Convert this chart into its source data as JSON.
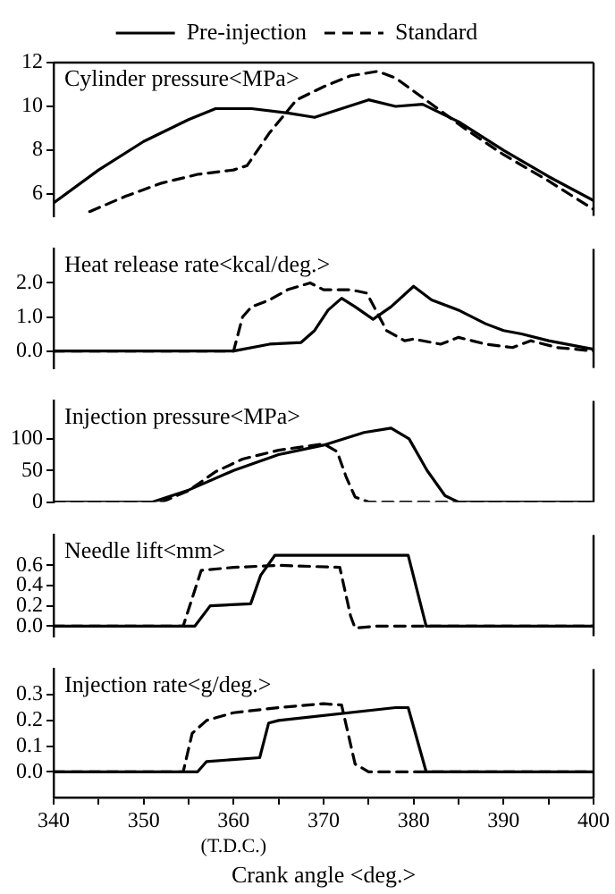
{
  "chart_data": [
    {
      "type": "line",
      "title": "Cylinder pressure<MPa>",
      "legend": "top",
      "marker": "none",
      "tick_labels": "y",
      "xlim": [
        340,
        400
      ],
      "ylim": [
        5,
        12
      ],
      "yticks": [
        6,
        8,
        10,
        12
      ],
      "series": [
        {
          "name": "Pre-injection",
          "color": "#000000",
          "line_style": "solid",
          "x": [
            340,
            345,
            350,
            355,
            358,
            362,
            366,
            369,
            372,
            375,
            378,
            381,
            385,
            390,
            395,
            400
          ],
          "values": [
            5.6,
            7.1,
            8.4,
            9.4,
            9.9,
            9.9,
            9.7,
            9.5,
            9.9,
            10.3,
            10.0,
            10.1,
            9.3,
            8.0,
            6.8,
            5.7
          ]
        },
        {
          "name": "Standard",
          "color": "#000000",
          "line_style": "dashed",
          "x": [
            344,
            348,
            352,
            356,
            360,
            361.5,
            364,
            367,
            370,
            373,
            376,
            378,
            382,
            386,
            390,
            395,
            400
          ],
          "values": [
            5.2,
            5.9,
            6.5,
            6.9,
            7.1,
            7.3,
            8.8,
            10.3,
            10.9,
            11.4,
            11.6,
            11.3,
            10.1,
            8.9,
            7.8,
            6.6,
            5.3
          ]
        }
      ]
    },
    {
      "type": "line",
      "title": "Heat release rate<kcal/deg.>",
      "legend": false,
      "marker": "none",
      "tick_labels": "y",
      "xlim": [
        340,
        400
      ],
      "ylim": [
        -0.5,
        3.0
      ],
      "yticks": [
        {
          "value": 0,
          "label": "0.0"
        },
        {
          "value": 1,
          "label": "1.0"
        },
        {
          "value": 2,
          "label": "2.0"
        }
      ],
      "series": [
        {
          "color": "#000000",
          "line_style": "solid",
          "x": [
            340,
            360,
            364,
            367.5,
            369,
            370.5,
            372,
            373.5,
            375.5,
            377.5,
            380,
            382,
            385,
            388,
            390,
            392,
            395,
            398,
            400
          ],
          "values": [
            0,
            0,
            0.2,
            0.25,
            0.6,
            1.2,
            1.55,
            1.3,
            0.93,
            1.3,
            1.9,
            1.5,
            1.2,
            0.8,
            0.6,
            0.5,
            0.3,
            0.15,
            0.05
          ]
        },
        {
          "color": "#000000",
          "line_style": "dashed",
          "x": [
            340,
            360,
            361,
            362,
            364,
            366,
            368.5,
            370,
            373,
            374.8,
            377,
            379,
            380,
            383,
            385,
            388,
            391,
            393,
            396,
            400
          ],
          "values": [
            0,
            0,
            1.0,
            1.3,
            1.5,
            1.8,
            2.0,
            1.8,
            1.8,
            1.7,
            0.6,
            0.3,
            0.35,
            0.2,
            0.4,
            0.2,
            0.1,
            0.3,
            0.1,
            0
          ]
        }
      ]
    },
    {
      "type": "line",
      "title": "Injection pressure<MPa>",
      "legend": false,
      "marker": "none",
      "tick_labels": "y",
      "xlim": [
        340,
        400
      ],
      "ylim": [
        0,
        160
      ],
      "yticks": [
        0,
        50,
        100
      ],
      "series": [
        {
          "color": "#000000",
          "line_style": "solid",
          "x": [
            340,
            351,
            355,
            360,
            365,
            370,
            374.5,
            377.5,
            379.5,
            381.5,
            383.5,
            385,
            400
          ],
          "values": [
            0,
            0,
            19,
            50,
            75,
            90,
            110,
            117,
            100,
            50,
            10,
            0,
            0
          ]
        },
        {
          "color": "#000000",
          "line_style": "dashed",
          "x": [
            340,
            352,
            355,
            358,
            361,
            365,
            370,
            371.5,
            372.5,
            373.5,
            375,
            400
          ],
          "values": [
            0,
            0,
            18,
            48,
            68,
            82,
            92,
            80,
            40,
            8,
            0,
            0
          ]
        }
      ]
    },
    {
      "type": "line",
      "title": "Needle lift<mm>",
      "legend": false,
      "marker": "none",
      "tick_labels": "y",
      "xlim": [
        340,
        400
      ],
      "ylim": [
        -0.1,
        0.9
      ],
      "yticks": [
        {
          "value": 0,
          "label": "0.0"
        },
        {
          "value": 0.2,
          "label": "0.2"
        },
        {
          "value": 0.4,
          "label": "0.4"
        },
        {
          "value": 0.6,
          "label": "0.6"
        }
      ],
      "series": [
        {
          "color": "#000000",
          "line_style": "solid",
          "x": [
            340,
            355.7,
            357.4,
            361.9,
            363,
            364.6,
            379.4,
            381.4,
            400
          ],
          "values": [
            0,
            0,
            0.2,
            0.22,
            0.5,
            0.7,
            0.7,
            0,
            0
          ]
        },
        {
          "color": "#000000",
          "line_style": "dashed",
          "x": [
            340,
            354.4,
            356.4,
            360,
            365,
            371.8,
            373,
            373.5,
            376,
            400
          ],
          "values": [
            0,
            0,
            0.55,
            0.58,
            0.6,
            0.58,
            0.1,
            -0.02,
            0,
            0
          ]
        }
      ]
    },
    {
      "type": "line",
      "title": "Injection rate<g/deg.>",
      "xlabel": "Crank angle <deg.>",
      "legend": false,
      "marker": "none",
      "xlim": [
        340,
        400
      ],
      "ylim": [
        -0.1,
        0.4
      ],
      "yticks": [
        {
          "value": 0,
          "label": "0.0"
        },
        {
          "value": 0.1,
          "label": "0.1"
        },
        {
          "value": 0.2,
          "label": "0.2"
        },
        {
          "value": 0.3,
          "label": "0.3"
        }
      ],
      "xticks": [
        340,
        {
          "value": 345,
          "label": null
        },
        350,
        {
          "value": 355,
          "label": null
        },
        360,
        {
          "value": 365,
          "label": null
        },
        370,
        {
          "value": 375,
          "label": null
        },
        380,
        {
          "value": 385,
          "label": null
        },
        390,
        {
          "value": 395,
          "label": null
        },
        400
      ],
      "annotations": [
        "(T.D.C.)"
      ],
      "series": [
        {
          "color": "#000000",
          "line_style": "solid",
          "x": [
            340,
            356,
            357,
            362.9,
            363.9,
            365,
            378,
            379.4,
            381.4,
            400
          ],
          "values": [
            0,
            0,
            0.04,
            0.055,
            0.19,
            0.2,
            0.25,
            0.25,
            0,
            0
          ]
        },
        {
          "color": "#000000",
          "line_style": "dashed",
          "x": [
            340,
            354.4,
            355.4,
            357,
            360,
            365,
            370,
            372,
            373.5,
            375,
            400
          ],
          "values": [
            0,
            0,
            0.15,
            0.2,
            0.23,
            0.25,
            0.265,
            0.26,
            0.03,
            0,
            0
          ]
        }
      ]
    }
  ]
}
